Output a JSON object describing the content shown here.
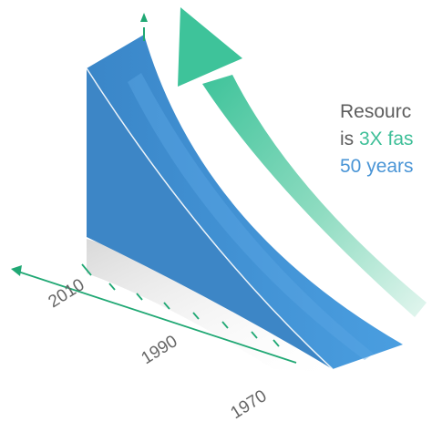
{
  "caption": {
    "line1": "Resourc",
    "line2_prefix": "is ",
    "line2_highlight": "3X fas",
    "line3": "50 years"
  },
  "axis": {
    "labels": [
      "2010",
      "1990",
      "1970"
    ]
  },
  "colors": {
    "surface_blue": "#3f92d8",
    "surface_dark": "#3478b4",
    "growth_arrow_green": "#3ec39a",
    "axis_green": "#20a874",
    "text_gray": "#5d5d5d"
  }
}
